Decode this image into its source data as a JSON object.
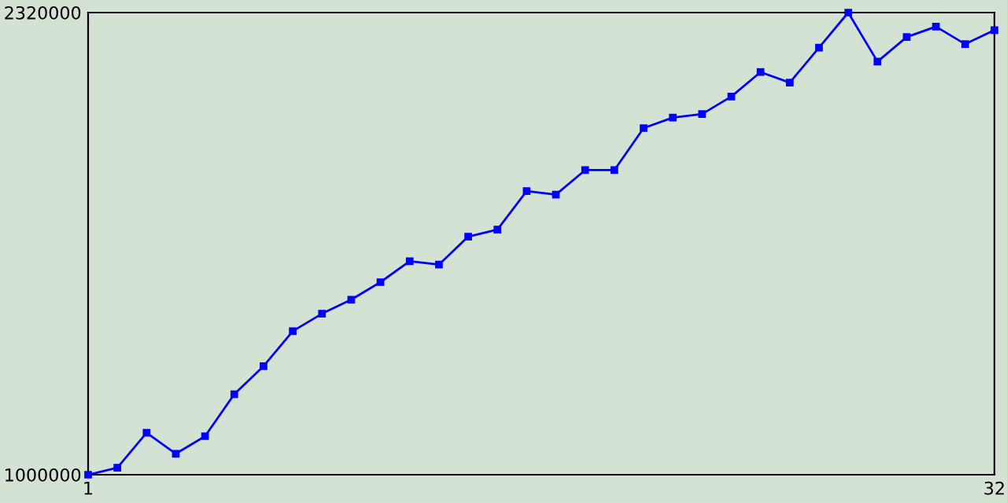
{
  "chart_data": {
    "type": "line",
    "x": [
      1,
      2,
      3,
      4,
      5,
      6,
      7,
      8,
      9,
      10,
      11,
      12,
      13,
      14,
      15,
      16,
      17,
      18,
      19,
      20,
      21,
      22,
      23,
      24,
      25,
      26,
      27,
      28,
      29,
      30,
      31,
      32
    ],
    "series": [
      {
        "color": "#0000ff",
        "values": [
          1000000,
          1020000,
          1120000,
          1060000,
          1110000,
          1230000,
          1310000,
          1410000,
          1460000,
          1500000,
          1550000,
          1610000,
          1600000,
          1680000,
          1700000,
          1810000,
          1800000,
          1870000,
          1870000,
          1990000,
          2020000,
          2030000,
          2080000,
          2150000,
          2120000,
          2220000,
          2320000,
          2180000,
          2250000,
          2280000,
          2230000,
          2270000
        ]
      }
    ],
    "xlim": [
      1,
      32
    ],
    "xticks": [
      1,
      32
    ],
    "ylim": [
      1000000,
      2320000
    ],
    "yticks": [
      1000000,
      2320000
    ],
    "marker": "square",
    "line_style": "solid",
    "grid": false
  }
}
